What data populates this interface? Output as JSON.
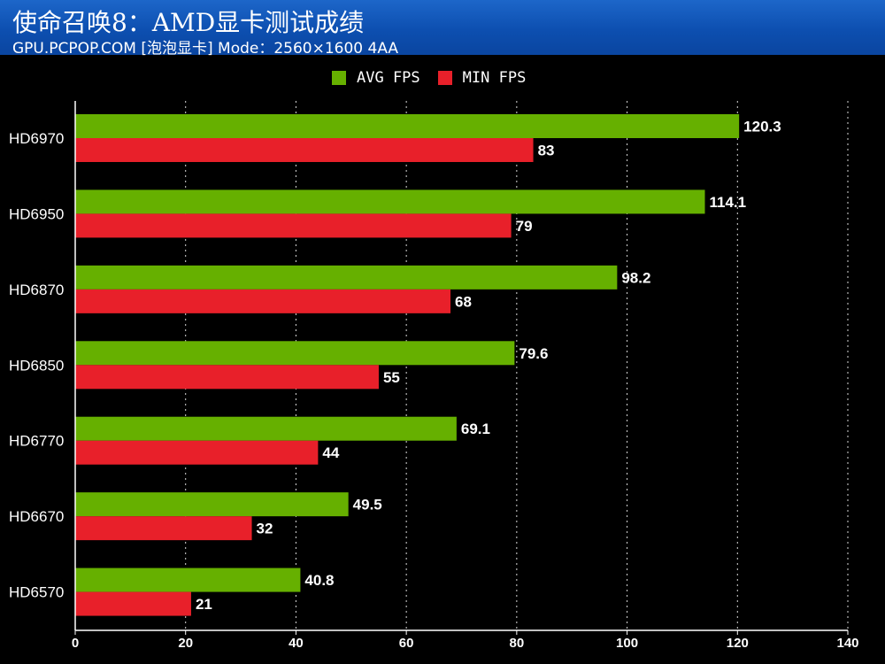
{
  "header": {
    "title": "使命召唤8：AMD显卡测试成绩",
    "subtitle": "GPU.PCPOP.COM [泡泡显卡] Mode：2560×1600 4AA"
  },
  "colors": {
    "background": "#000000",
    "header": "#0d4fb0",
    "avg": "#66b000",
    "min": "#e8202a",
    "grid": "#ffffff"
  },
  "chart_data": {
    "type": "bar",
    "orientation": "horizontal",
    "title": "使命召唤8：AMD显卡测试成绩",
    "subtitle": "GPU.PCPOP.COM [泡泡显卡] Mode：2560×1600 4AA",
    "categories": [
      "HD6970",
      "HD6950",
      "HD6870",
      "HD6850",
      "HD6770",
      "HD6670",
      "HD6570"
    ],
    "series": [
      {
        "name": "AVG FPS",
        "values": [
          120.3,
          114.1,
          98.2,
          79.6,
          69.1,
          49.5,
          40.8
        ]
      },
      {
        "name": "MIN FPS",
        "values": [
          83,
          79,
          68,
          55,
          44,
          32,
          21
        ]
      }
    ],
    "xlim": [
      0,
      140
    ],
    "xticks": [
      0,
      20,
      40,
      60,
      80,
      100,
      120,
      140
    ],
    "grid": "vertical dashed",
    "legend_position": "top-center",
    "data_labels": true
  }
}
